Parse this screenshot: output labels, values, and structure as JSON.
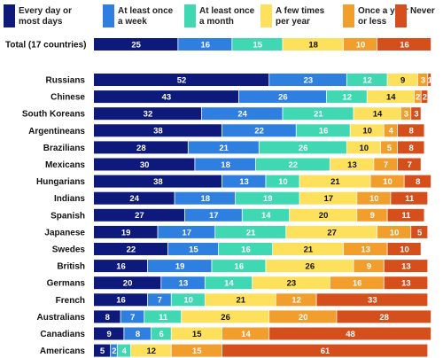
{
  "chart_data": {
    "type": "bar",
    "stacked": true,
    "orientation": "horizontal",
    "title": "",
    "xlabel": "",
    "ylabel": "",
    "xlim": [
      0,
      100
    ],
    "legend_position": "top",
    "colors": [
      "#0d1a7c",
      "#2e7fe0",
      "#40d8b2",
      "#fde05c",
      "#f19e2c",
      "#d54f1c"
    ],
    "categories": [
      "Total (17 countries)",
      "Russians",
      "Chinese",
      "South Koreans",
      "Argentineans",
      "Brazilians",
      "Mexicans",
      "Hungarians",
      "Indians",
      "Spanish",
      "Japanese",
      "Swedes",
      "British",
      "Germans",
      "French",
      "Australians",
      "Canadians",
      "Americans"
    ],
    "series": [
      {
        "name": "Every day or most days",
        "values": [
          25,
          52,
          43,
          32,
          38,
          28,
          30,
          38,
          24,
          27,
          19,
          22,
          16,
          20,
          16,
          8,
          9,
          5
        ]
      },
      {
        "name": "At least once a week",
        "values": [
          16,
          23,
          26,
          24,
          22,
          21,
          18,
          13,
          18,
          17,
          17,
          15,
          19,
          13,
          7,
          7,
          8,
          2
        ]
      },
      {
        "name": "At least once a month",
        "values": [
          15,
          12,
          12,
          21,
          16,
          26,
          22,
          10,
          19,
          14,
          21,
          16,
          16,
          14,
          10,
          11,
          6,
          4
        ]
      },
      {
        "name": "A few times per year",
        "values": [
          18,
          9,
          14,
          14,
          10,
          10,
          13,
          21,
          17,
          20,
          27,
          21,
          26,
          23,
          21,
          26,
          15,
          12
        ]
      },
      {
        "name": "Once a year or less",
        "values": [
          10,
          3,
          2,
          3,
          4,
          5,
          7,
          10,
          10,
          9,
          10,
          13,
          9,
          16,
          12,
          20,
          14,
          15
        ]
      },
      {
        "name": "Never",
        "values": [
          16,
          1,
          2,
          3,
          8,
          8,
          7,
          8,
          11,
          11,
          5,
          10,
          13,
          13,
          33,
          28,
          48,
          61
        ]
      }
    ]
  }
}
